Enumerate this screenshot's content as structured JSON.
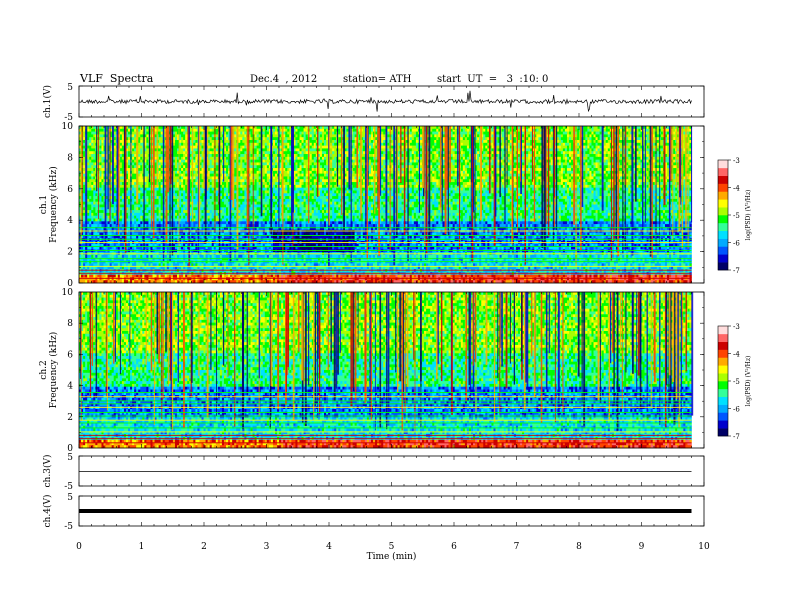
{
  "header": {
    "title": "VLF  Spectra",
    "date": "Dec.4  , 2012",
    "station": "station= ATH",
    "start": "start  UT  =   3  :10: 0"
  },
  "colors": {
    "colormap": [
      "#000066",
      "#0000cc",
      "#0055ff",
      "#00aaff",
      "#00e0ff",
      "#33ff99",
      "#00ff00",
      "#aaff00",
      "#ffff00",
      "#ffaa00",
      "#ff4400",
      "#cc0000",
      "#ff6666",
      "#ffdddd"
    ],
    "trace": "#000000"
  },
  "chart_data": [
    {
      "type": "line",
      "name_label": "ch.1(V)",
      "ylim": [
        -5,
        5
      ],
      "yticks": [
        "5",
        "-5"
      ],
      "note": "ch.1 waveform, roughly flat near 0 V with small impulsive spikes"
    },
    {
      "type": "heatmap",
      "ylabel": "ch.1\nFrequency  (kHz)",
      "ylim": [
        0,
        10
      ],
      "yticks": [
        "0",
        "2",
        "4",
        "6",
        "8",
        "10"
      ],
      "colorbar": {
        "label": "log(PSD) (V²/Hz)",
        "ticks": [
          "-3",
          "-4",
          "-5",
          "-6",
          "-7"
        ],
        "range": [
          -7,
          -3
        ]
      }
    },
    {
      "type": "heatmap",
      "ylabel": "ch.2\nFrequency  (kHz)",
      "ylim": [
        0,
        10
      ],
      "yticks": [
        "0",
        "2",
        "4",
        "6",
        "8",
        "10"
      ],
      "colorbar": {
        "label": "log(PSD) (V²/Hz)",
        "ticks": [
          "-3",
          "-4",
          "-5",
          "-6",
          "-7"
        ],
        "range": [
          -7,
          -3
        ]
      }
    },
    {
      "type": "line",
      "name_label": "ch.3(V)",
      "ylim": [
        -5,
        5
      ],
      "yticks": [
        "5",
        "-5"
      ]
    },
    {
      "type": "line",
      "name_label": "ch.4(V)",
      "ylim": [
        -5,
        5
      ],
      "yticks": [
        "5",
        "-5"
      ]
    }
  ],
  "xaxis": {
    "label": "Time  (min)",
    "ticks": [
      "0",
      "1",
      "2",
      "3",
      "4",
      "5",
      "6",
      "7",
      "8",
      "9",
      "10"
    ],
    "xlim": [
      0,
      10
    ],
    "data_end": 9.8
  }
}
